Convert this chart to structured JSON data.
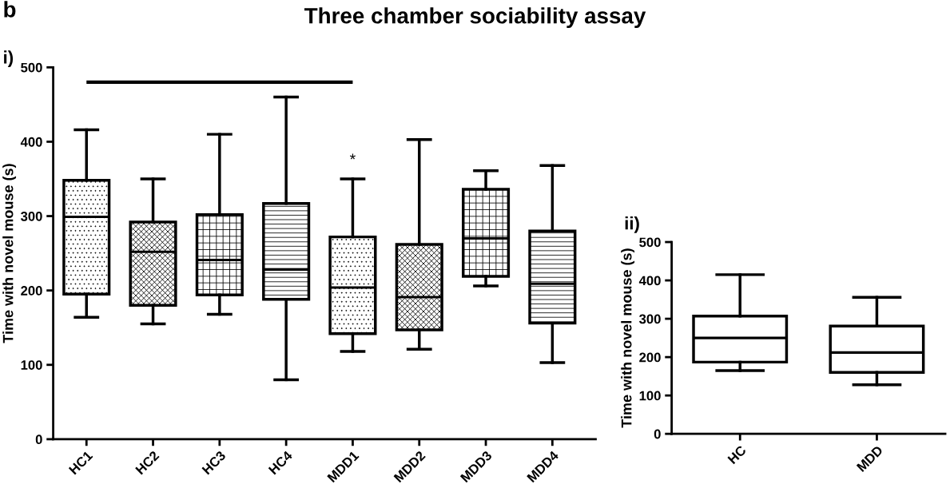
{
  "chart_data": [
    {
      "type": "box",
      "title": "Three chamber sociability assay",
      "ylabel": "Time with novel mouse (s)",
      "categories": [
        "HC1",
        "HC2",
        "HC3",
        "HC4",
        "MDD1",
        "MDD2",
        "MDD3",
        "MDD4"
      ],
      "boxes": [
        {
          "low": 164,
          "q1": 195,
          "median": 299,
          "q3": 348,
          "high": 416
        },
        {
          "low": 155,
          "q1": 180,
          "median": 252,
          "q3": 292,
          "high": 350
        },
        {
          "low": 168,
          "q1": 194,
          "median": 241,
          "q3": 302,
          "high": 410
        },
        {
          "low": 80,
          "q1": 188,
          "median": 228,
          "q3": 317,
          "high": 460
        },
        {
          "low": 118,
          "q1": 142,
          "median": 204,
          "q3": 272,
          "high": 350
        },
        {
          "low": 121,
          "q1": 147,
          "median": 191,
          "q3": 262,
          "high": 403
        },
        {
          "low": 206,
          "q1": 219,
          "median": 270,
          "q3": 336,
          "high": 361
        },
        {
          "low": 103,
          "q1": 156,
          "median": 209,
          "q3": 280,
          "high": 368
        }
      ],
      "ref_lines": [
        {
          "axis": "y",
          "value": 480,
          "color": "#000000"
        }
      ],
      "ylim": [
        0,
        500
      ],
      "yticks": [
        0,
        100,
        200,
        300,
        400,
        500
      ],
      "annotations": [
        "b",
        "i)",
        "*"
      ]
    },
    {
      "type": "box",
      "ylabel": "Time with novel mouse (s)",
      "categories": [
        "HC",
        "MDD"
      ],
      "boxes": [
        {
          "low": 165,
          "q1": 187,
          "median": 250,
          "q3": 307,
          "high": 415
        },
        {
          "low": 128,
          "q1": 160,
          "median": 212,
          "q3": 281,
          "high": 356
        }
      ],
      "ylim": [
        0,
        500
      ],
      "yticks": [
        0,
        100,
        200,
        300,
        400,
        500
      ],
      "annotations": [
        "ii)"
      ]
    }
  ]
}
